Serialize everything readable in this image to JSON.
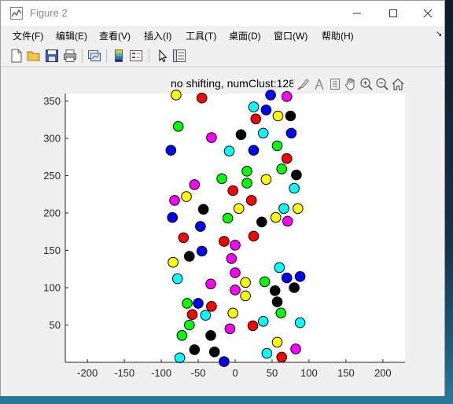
{
  "window": {
    "title": "Figure 2",
    "controls": {
      "minimize": "minimize-icon",
      "maximize": "maximize-icon",
      "close": "close-icon"
    }
  },
  "menu": [
    {
      "label": "文件(F)"
    },
    {
      "label": "编辑(E)"
    },
    {
      "label": "查看(V)"
    },
    {
      "label": "插入(I)"
    },
    {
      "label": "工具(T)"
    },
    {
      "label": "桌面(D)"
    },
    {
      "label": "窗口(W)"
    },
    {
      "label": "帮助(H)"
    }
  ],
  "menu_dock_arrow": "↘",
  "toolbar": [
    "new-file-icon",
    "open-folder-icon",
    "save-icon",
    "print-icon",
    "link-plot-icon",
    "colorbar-icon",
    "legend-icon",
    "pointer-icon",
    "property-inspector-icon"
  ],
  "axes_toolbar": [
    "brush-icon",
    "data-tips-icon",
    "export-icon",
    "pan-icon",
    "zoom-in-icon",
    "zoom-out-icon",
    "home-icon"
  ],
  "colors": {
    "green": "#00ff00",
    "blue": "#0000ff",
    "red": "#ff0000",
    "black": "#000000",
    "yellow": "#ffff00",
    "magenta": "#ff00ff",
    "cyan": "#00ffff"
  },
  "chart_data": {
    "type": "scatter",
    "title": "no shifting, numClust:128",
    "xlim": [
      -230,
      230
    ],
    "ylim": [
      0,
      360
    ],
    "xticks": [
      -200,
      -150,
      -100,
      -50,
      0,
      50,
      100,
      150,
      200
    ],
    "yticks": [
      50,
      100,
      150,
      200,
      250,
      300,
      350
    ],
    "grid": false,
    "points": [
      {
        "x": -80,
        "y": 358,
        "c": "yellow"
      },
      {
        "x": -45,
        "y": 354,
        "c": "red"
      },
      {
        "x": 48,
        "y": 358,
        "c": "blue"
      },
      {
        "x": 70,
        "y": 356,
        "c": "magenta"
      },
      {
        "x": 25,
        "y": 342,
        "c": "cyan"
      },
      {
        "x": 42,
        "y": 338,
        "c": "blue"
      },
      {
        "x": 58,
        "y": 330,
        "c": "yellow"
      },
      {
        "x": 75,
        "y": 330,
        "c": "black"
      },
      {
        "x": 28,
        "y": 326,
        "c": "red"
      },
      {
        "x": -77,
        "y": 316,
        "c": "green"
      },
      {
        "x": 8,
        "y": 305,
        "c": "black"
      },
      {
        "x": 38,
        "y": 307,
        "c": "cyan"
      },
      {
        "x": 76,
        "y": 307,
        "c": "blue"
      },
      {
        "x": -32,
        "y": 301,
        "c": "magenta"
      },
      {
        "x": 57,
        "y": 290,
        "c": "green"
      },
      {
        "x": -87,
        "y": 284,
        "c": "blue"
      },
      {
        "x": -8,
        "y": 283,
        "c": "cyan"
      },
      {
        "x": 25,
        "y": 284,
        "c": "blue"
      },
      {
        "x": 70,
        "y": 273,
        "c": "red"
      },
      {
        "x": 16,
        "y": 256,
        "c": "green"
      },
      {
        "x": 63,
        "y": 259,
        "c": "green"
      },
      {
        "x": 83,
        "y": 251,
        "c": "black"
      },
      {
        "x": -18,
        "y": 246,
        "c": "green"
      },
      {
        "x": 42,
        "y": 245,
        "c": "yellow"
      },
      {
        "x": 16,
        "y": 240,
        "c": "green"
      },
      {
        "x": -55,
        "y": 238,
        "c": "magenta"
      },
      {
        "x": 80,
        "y": 233,
        "c": "cyan"
      },
      {
        "x": -3,
        "y": 230,
        "c": "red"
      },
      {
        "x": -66,
        "y": 222,
        "c": "yellow"
      },
      {
        "x": -82,
        "y": 217,
        "c": "magenta"
      },
      {
        "x": 22,
        "y": 217,
        "c": "red"
      },
      {
        "x": -43,
        "y": 205,
        "c": "black"
      },
      {
        "x": 5,
        "y": 206,
        "c": "yellow"
      },
      {
        "x": 66,
        "y": 206,
        "c": "cyan"
      },
      {
        "x": 85,
        "y": 206,
        "c": "yellow"
      },
      {
        "x": -85,
        "y": 194,
        "c": "blue"
      },
      {
        "x": -10,
        "y": 193,
        "c": "green"
      },
      {
        "x": 55,
        "y": 194,
        "c": "yellow"
      },
      {
        "x": 36,
        "y": 188,
        "c": "black"
      },
      {
        "x": 71,
        "y": 189,
        "c": "magenta"
      },
      {
        "x": -47,
        "y": 182,
        "c": "blue"
      },
      {
        "x": -70,
        "y": 167,
        "c": "red"
      },
      {
        "x": 25,
        "y": 169,
        "c": "red"
      },
      {
        "x": -15,
        "y": 162,
        "c": "red"
      },
      {
        "x": 0,
        "y": 157,
        "c": "magenta"
      },
      {
        "x": -45,
        "y": 149,
        "c": "blue"
      },
      {
        "x": -62,
        "y": 142,
        "c": "black"
      },
      {
        "x": -5,
        "y": 139,
        "c": "magenta"
      },
      {
        "x": -84,
        "y": 134,
        "c": "yellow"
      },
      {
        "x": 60,
        "y": 127,
        "c": "cyan"
      },
      {
        "x": 0,
        "y": 120,
        "c": "magenta"
      },
      {
        "x": -78,
        "y": 112,
        "c": "cyan"
      },
      {
        "x": 70,
        "y": 113,
        "c": "blue"
      },
      {
        "x": 88,
        "y": 115,
        "c": "blue"
      },
      {
        "x": 40,
        "y": 108,
        "c": "green"
      },
      {
        "x": 14,
        "y": 107,
        "c": "yellow"
      },
      {
        "x": -33,
        "y": 105,
        "c": "magenta"
      },
      {
        "x": 54,
        "y": 96,
        "c": "black"
      },
      {
        "x": 80,
        "y": 100,
        "c": "black"
      },
      {
        "x": 0,
        "y": 97,
        "c": "magenta"
      },
      {
        "x": 14,
        "y": 89,
        "c": "yellow"
      },
      {
        "x": 57,
        "y": 81,
        "c": "black"
      },
      {
        "x": -65,
        "y": 79,
        "c": "green"
      },
      {
        "x": -50,
        "y": 79,
        "c": "blue"
      },
      {
        "x": -32,
        "y": 75,
        "c": "red"
      },
      {
        "x": -58,
        "y": 64,
        "c": "red"
      },
      {
        "x": -40,
        "y": 63,
        "c": "cyan"
      },
      {
        "x": -3,
        "y": 66,
        "c": "yellow"
      },
      {
        "x": 62,
        "y": 66,
        "c": "green"
      },
      {
        "x": 38,
        "y": 55,
        "c": "cyan"
      },
      {
        "x": 88,
        "y": 53,
        "c": "cyan"
      },
      {
        "x": -62,
        "y": 50,
        "c": "green"
      },
      {
        "x": -7,
        "y": 45,
        "c": "magenta"
      },
      {
        "x": 24,
        "y": 49,
        "c": "red"
      },
      {
        "x": -72,
        "y": 36,
        "c": "green"
      },
      {
        "x": -33,
        "y": 36,
        "c": "black"
      },
      {
        "x": 57,
        "y": 27,
        "c": "yellow"
      },
      {
        "x": -55,
        "y": 17,
        "c": "black"
      },
      {
        "x": -28,
        "y": 14,
        "c": "black"
      },
      {
        "x": 43,
        "y": 12,
        "c": "cyan"
      },
      {
        "x": 82,
        "y": 18,
        "c": "magenta"
      },
      {
        "x": -75,
        "y": 6,
        "c": "cyan"
      },
      {
        "x": 63,
        "y": 7,
        "c": "red"
      },
      {
        "x": -15,
        "y": 1,
        "c": "blue"
      }
    ]
  }
}
